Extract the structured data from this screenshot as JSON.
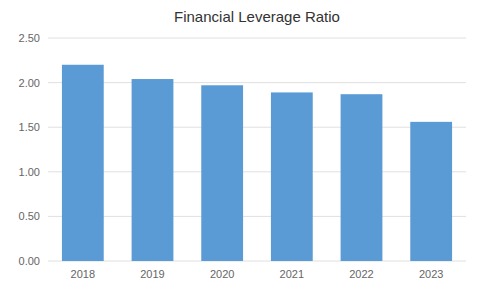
{
  "chart_data": {
    "type": "bar",
    "title": "Financial Leverage Ratio",
    "categories": [
      "2018",
      "2019",
      "2020",
      "2021",
      "2022",
      "2023"
    ],
    "values": [
      2.2,
      2.04,
      1.97,
      1.89,
      1.87,
      1.56
    ],
    "color": "#5B9BD5",
    "ylim": [
      0,
      2.5
    ],
    "yticks": [
      {
        "value": 0.0,
        "label": "0.00"
      },
      {
        "value": 0.5,
        "label": "0.50"
      },
      {
        "value": 1.0,
        "label": "1.00"
      },
      {
        "value": 1.5,
        "label": "1.50"
      },
      {
        "value": 2.0,
        "label": "2.00"
      },
      {
        "value": 2.5,
        "label": "2.50"
      }
    ],
    "grid": true
  }
}
